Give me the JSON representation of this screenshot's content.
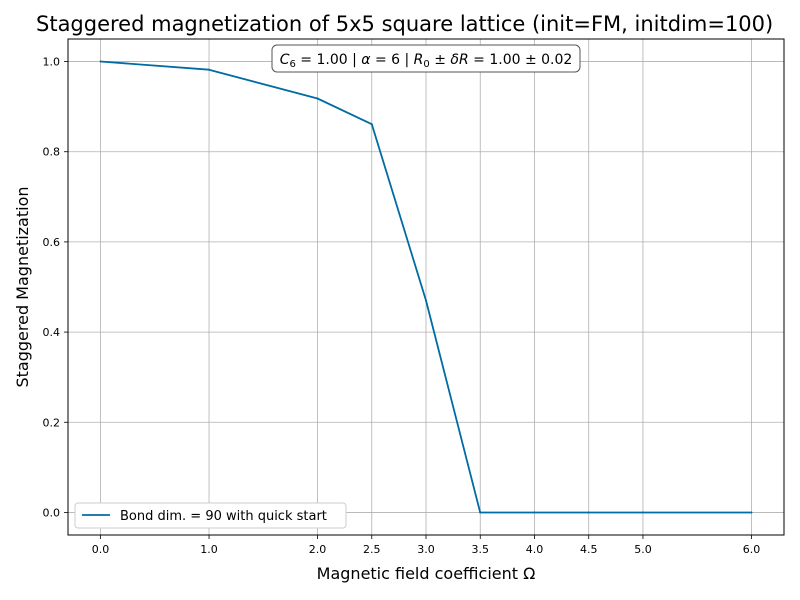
{
  "chart_data": {
    "type": "line",
    "title": "Staggered magnetization of 5x5 square lattice (init=FM, initdim=100)",
    "xlabel": "Magnetic field coefficient Ω",
    "ylabel": "Staggered Magnetization",
    "x_ticks": [
      "0.0",
      "1.0",
      "2.0",
      "2.5",
      "3.0",
      "3.5",
      "4.0",
      "4.5",
      "5.0",
      "6.0"
    ],
    "y_ticks": [
      "0.0",
      "0.2",
      "0.4",
      "0.6",
      "0.8",
      "1.0"
    ],
    "xlim": [
      -0.3,
      6.3
    ],
    "ylim": [
      -0.05,
      1.05
    ],
    "grid": true,
    "legend_position": "lower-left",
    "annotation": {
      "c6": "C",
      "c6_sub": "6",
      "c6_val": " = 1.00 | ",
      "alpha": "α",
      "alpha_val": " = 6 | ",
      "r0": "R",
      "r0_sub": "0",
      "r0_val": " ± ",
      "dr": "δR",
      "dr_val": " = 1.00 ± 0.02"
    },
    "series": [
      {
        "name": "Bond dim. = 90 with quick start",
        "color": "#006ba4",
        "x": [
          0.0,
          1.0,
          2.0,
          2.5,
          3.0,
          3.5,
          4.0,
          4.5,
          5.0,
          6.0
        ],
        "y": [
          1.0,
          0.982,
          0.918,
          0.861,
          0.47,
          0.0,
          0.0,
          0.0,
          0.0,
          0.0
        ]
      }
    ]
  }
}
